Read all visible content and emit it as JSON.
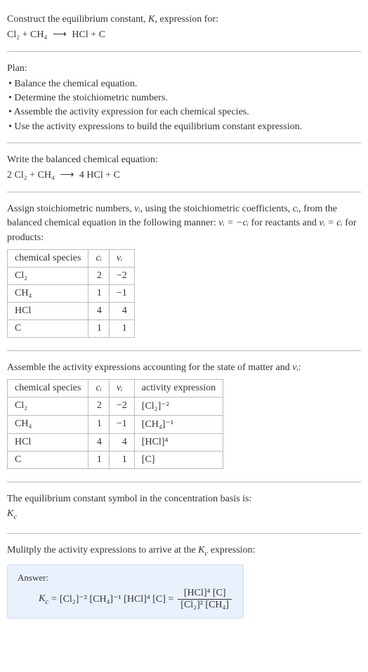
{
  "header": {
    "line1": "Construct the equilibrium constant, ",
    "Ksym": "K",
    "line1b": ", expression for:",
    "reaction_lhs": "Cl₂ + CH₄",
    "arrow": "⟶",
    "reaction_rhs": "HCl + C"
  },
  "plan": {
    "title": "Plan:",
    "items": [
      "• Balance the chemical equation.",
      "• Determine the stoichiometric numbers.",
      "• Assemble the activity expression for each chemical species.",
      "• Use the activity expressions to build the equilibrium constant expression."
    ]
  },
  "balanced": {
    "intro": "Write the balanced chemical equation:",
    "lhs": "2 Cl₂ + CH₄",
    "arrow": "⟶",
    "rhs": "4 HCl + C"
  },
  "assign": {
    "text_a": "Assign stoichiometric numbers, ",
    "vi": "νᵢ",
    "text_b": ", using the stoichiometric coefficients, ",
    "ci": "cᵢ",
    "text_c": ", from the balanced chemical equation in the following manner: ",
    "eq1": "νᵢ = −cᵢ",
    "text_d": " for reactants and ",
    "eq2": "νᵢ = cᵢ",
    "text_e": " for products:"
  },
  "table1": {
    "headers": [
      "chemical species",
      "cᵢ",
      "νᵢ"
    ],
    "rows": [
      [
        "Cl₂",
        "2",
        "−2"
      ],
      [
        "CH₄",
        "1",
        "−1"
      ],
      [
        "HCl",
        "4",
        "4"
      ],
      [
        "C",
        "1",
        "1"
      ]
    ]
  },
  "assemble": {
    "text_a": "Assemble the activity expressions accounting for the state of matter and ",
    "vi": "νᵢ",
    "text_b": ":"
  },
  "table2": {
    "headers": [
      "chemical species",
      "cᵢ",
      "νᵢ",
      "activity expression"
    ],
    "rows": [
      [
        "Cl₂",
        "2",
        "−2",
        "[Cl₂]⁻²"
      ],
      [
        "CH₄",
        "1",
        "−1",
        "[CH₄]⁻¹"
      ],
      [
        "HCl",
        "4",
        "4",
        "[HCl]⁴"
      ],
      [
        "C",
        "1",
        "1",
        "[C]"
      ]
    ]
  },
  "kc_intro": {
    "text": "The equilibrium constant symbol in the concentration basis is:",
    "sym": "K",
    "sub": "c"
  },
  "multiply": {
    "text_a": "Mulitply the activity expressions to arrive at the ",
    "Kc": "K",
    "sub": "c",
    "text_b": " expression:"
  },
  "answer": {
    "label": "Answer:",
    "Kc": "K",
    "sub": "c",
    "eq": " = ",
    "terms": "[Cl₂]⁻² [CH₄]⁻¹ [HCl]⁴ [C] = ",
    "frac_num": "[HCl]⁴ [C]",
    "frac_den": "[Cl₂]² [CH₄]"
  },
  "colors": {
    "text": "#333333",
    "divider": "#b8b8b8",
    "table_border": "#bbbbbb",
    "answer_bg": "#e9f1fc",
    "answer_border": "#c8daf2"
  }
}
